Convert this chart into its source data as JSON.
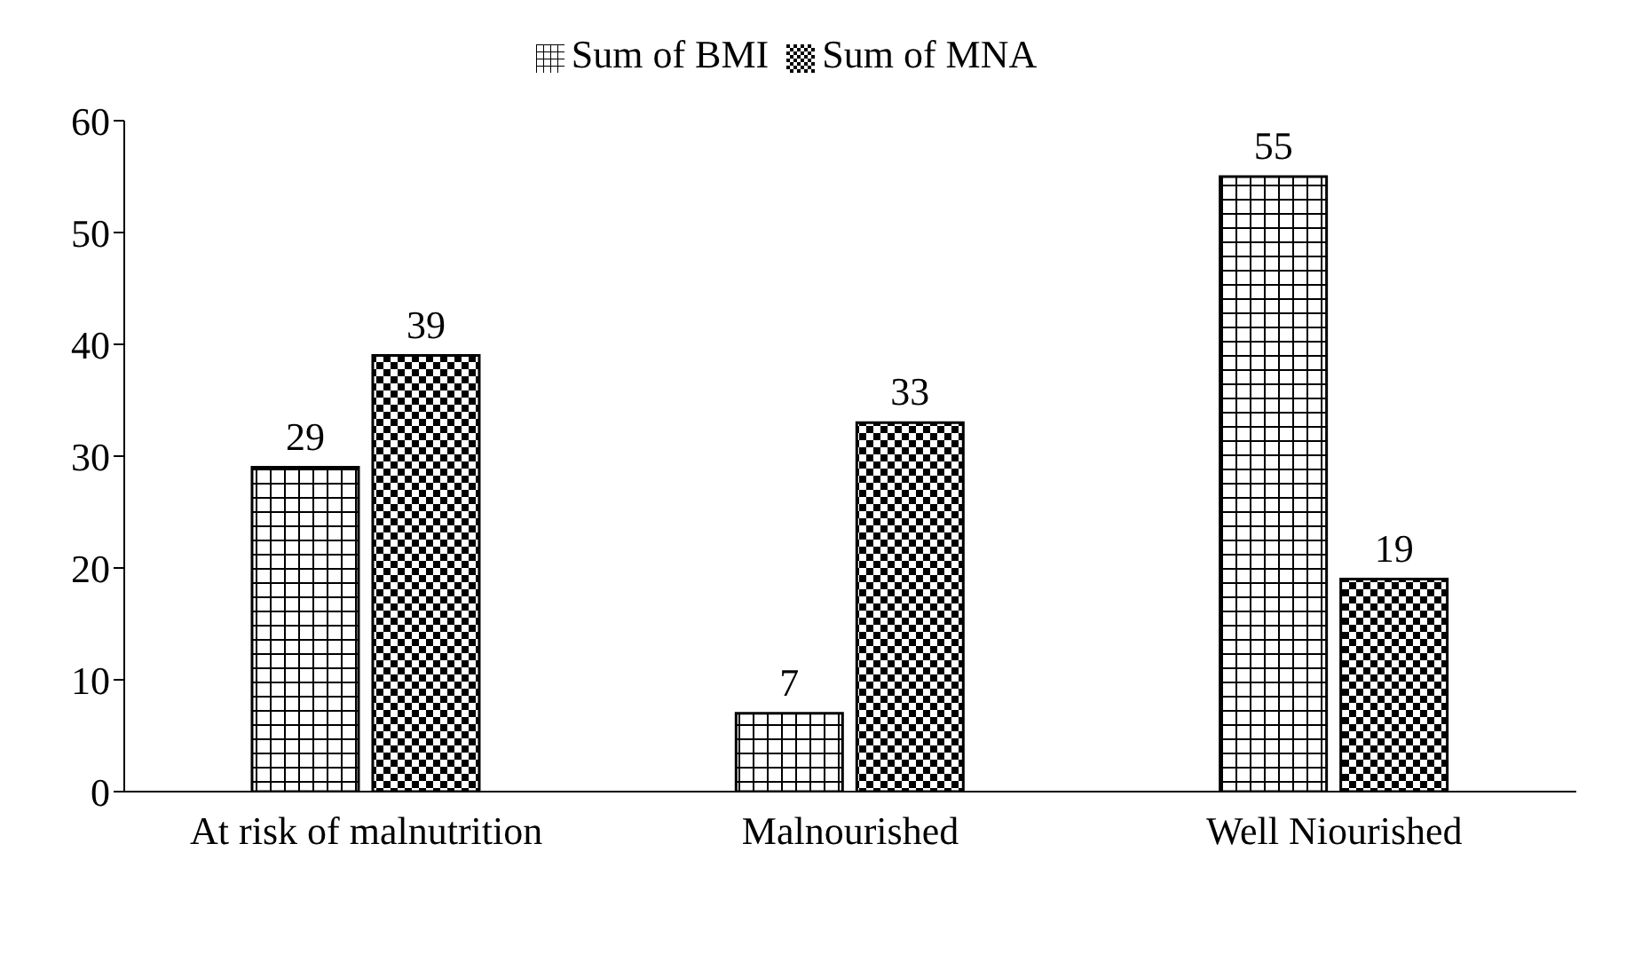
{
  "chart_data": {
    "type": "bar",
    "categories": [
      "At risk of malnutrition",
      "Malnourished",
      "Well Niourished"
    ],
    "series": [
      {
        "name": "Sum of BMI",
        "color": "#000000",
        "values": [
          29,
          7,
          55
        ]
      },
      {
        "name": "Sum of MNA",
        "color": "#000000",
        "values": [
          39,
          33,
          19
        ]
      }
    ],
    "ylim": [
      0,
      60
    ],
    "yticks": [
      0,
      10,
      20,
      30,
      40,
      50,
      60
    ],
    "grid": false,
    "legend": "top",
    "data_labels": true
  }
}
